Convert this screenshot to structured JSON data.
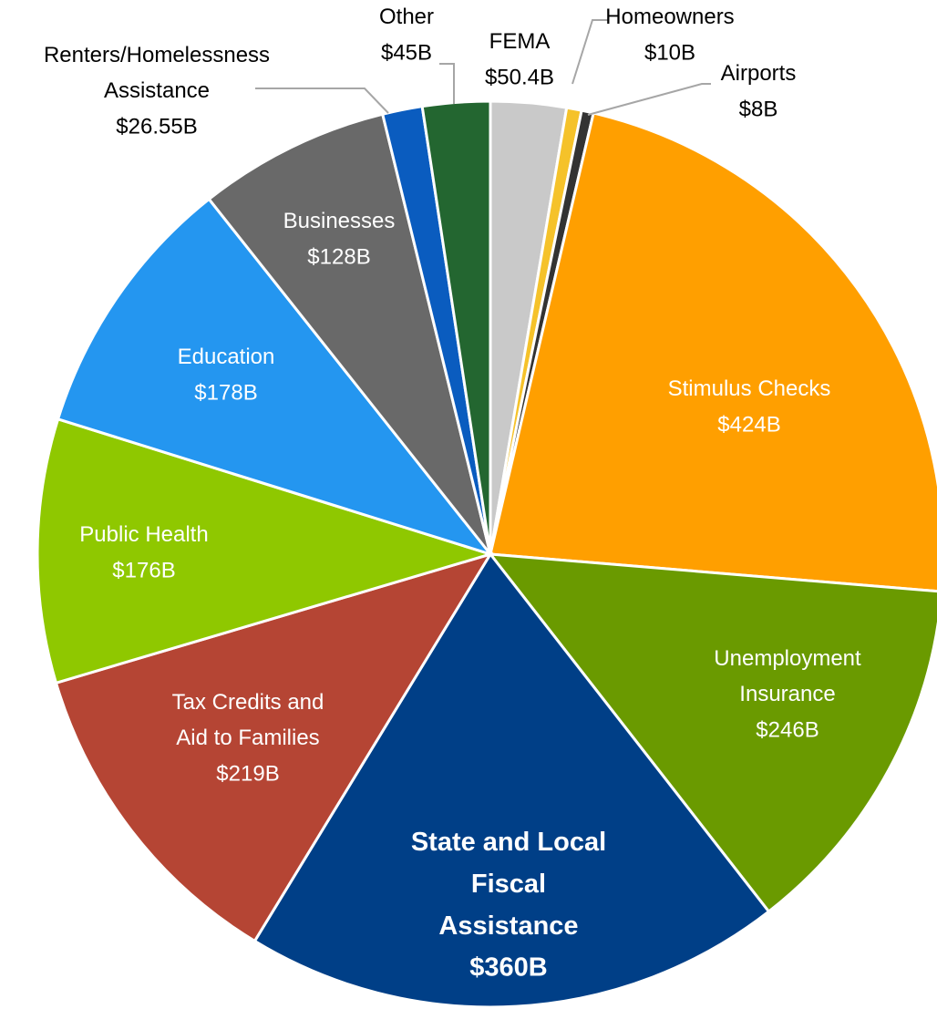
{
  "chart_data": {
    "type": "pie",
    "categories": [
      "FEMA",
      "Homeowners",
      "Airports",
      "Stimulus Checks",
      "Unemployment Insurance",
      "State and Local Fiscal Assistance",
      "Tax Credits and Aid to Families",
      "Public Health",
      "Education",
      "Businesses",
      "Renters/Homelessness Assistance",
      "Other"
    ],
    "values": [
      50.4,
      10,
      8,
      424,
      246,
      360,
      219,
      176,
      178,
      128,
      26.55,
      45
    ],
    "value_labels": [
      "$50.4B",
      "$10B",
      "$8B",
      "$424B",
      "$246B",
      "$360B",
      "$219B",
      "$176B",
      "$178B",
      "$128B",
      "$26.55B",
      "$45B"
    ],
    "colors": [
      "#c9c9c9",
      "#f5c22a",
      "#333333",
      "#ff9f00",
      "#6a9a00",
      "#003f87",
      "#b54534",
      "#8fc800",
      "#2496f0",
      "#696969",
      "#0a5cbf",
      "#236630"
    ]
  }
}
